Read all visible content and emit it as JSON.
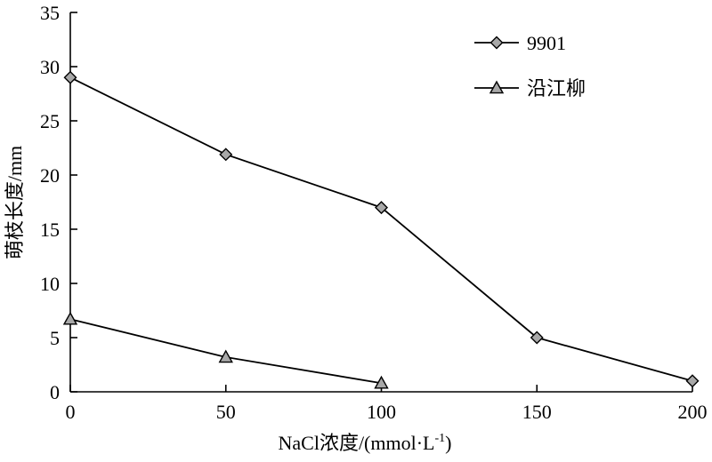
{
  "chart_data": {
    "type": "line",
    "title": "",
    "xlabel_main": "NaCl浓度/(mmol·L",
    "xlabel_sup": "-1",
    "xlabel_tail": ")",
    "ylabel": "萌枝长度/mm",
    "x": [
      0,
      50,
      100,
      150,
      200
    ],
    "xlim": [
      0,
      200
    ],
    "ylim": [
      0,
      35
    ],
    "xticks": [
      "0",
      "50",
      "100",
      "150",
      "200"
    ],
    "yticks": [
      "0",
      "5",
      "10",
      "15",
      "20",
      "25",
      "30",
      "35"
    ],
    "grid": false,
    "legend_position": "top-right",
    "series": [
      {
        "name": "9901",
        "marker": "diamond",
        "x": [
          0,
          50,
          100,
          150,
          200
        ],
        "values": [
          29,
          21.9,
          17,
          5,
          1
        ]
      },
      {
        "name": "沿江柳",
        "marker": "triangle",
        "x": [
          0,
          50,
          100
        ],
        "values": [
          6.7,
          3.2,
          0.8
        ]
      }
    ],
    "colors": {
      "line": "#000000",
      "marker_fill": "#a8a8a8"
    }
  }
}
